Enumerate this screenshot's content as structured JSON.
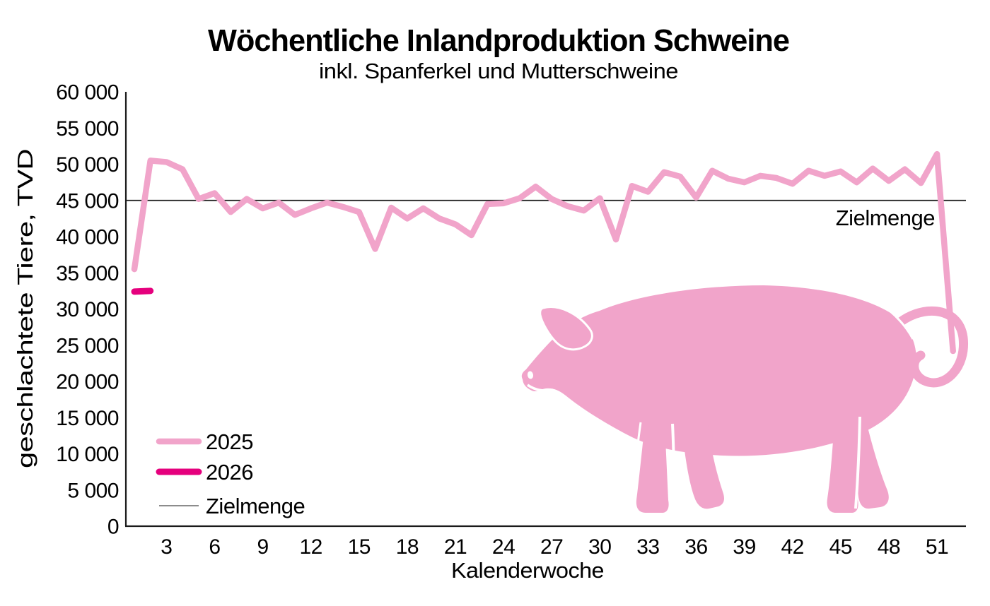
{
  "title": "Wöchentliche Inlandproduktion Schweine",
  "subtitle": "inkl. Spanferkel und Mutterschweine",
  "colors": {
    "series_2025": "#F1A4CA",
    "series_2026": "#E5007D",
    "pig": "#F1A4CA",
    "target_line": "#1a1a1a",
    "axis": "#1a1a1a",
    "legend_target_swatch": "#8c8c8c"
  },
  "chart_data": {
    "type": "line",
    "title": "Wöchentliche Inlandproduktion Schweine",
    "subtitle": "inkl. Spanferkel und Mutterschweine",
    "x_label": "Kalenderwoche",
    "y_label": "geschlachtete Tiere, TVD",
    "xlim_weeks": [
      1,
      52
    ],
    "ylim": [
      0,
      60000
    ],
    "grid": false,
    "legend_position": "bottom-left-inside",
    "x_tick_weeks": [
      3,
      6,
      9,
      12,
      15,
      18,
      21,
      24,
      27,
      30,
      33,
      36,
      39,
      42,
      45,
      48,
      51
    ],
    "y_ticks": [
      {
        "value": 0,
        "label": "0"
      },
      {
        "value": 5000,
        "label": "5 000"
      },
      {
        "value": 10000,
        "label": "10 000"
      },
      {
        "value": 15000,
        "label": "15 000"
      },
      {
        "value": 20000,
        "label": "20 000"
      },
      {
        "value": 25000,
        "label": "25 000"
      },
      {
        "value": 30000,
        "label": "30 000"
      },
      {
        "value": 35000,
        "label": "35 000"
      },
      {
        "value": 40000,
        "label": "40 000"
      },
      {
        "value": 45000,
        "label": "45 000"
      },
      {
        "value": 50000,
        "label": "50 000"
      },
      {
        "value": 55000,
        "label": "55 000"
      },
      {
        "value": 60000,
        "label": "60 000"
      }
    ],
    "target_line": {
      "label": "Zielmenge",
      "value": 45000,
      "color": "#1a1a1a"
    },
    "series": [
      {
        "name": "2025",
        "color": "#F1A4CA",
        "stroke_width": 8.5,
        "start_week": 1,
        "values": [
          35500,
          50500,
          50300,
          49300,
          45200,
          46000,
          43400,
          45200,
          43900,
          44700,
          43000,
          43900,
          44700,
          44100,
          43400,
          38300,
          44000,
          42500,
          43900,
          42500,
          41700,
          40200,
          44500,
          44600,
          45300,
          46900,
          45200,
          44200,
          43600,
          45300,
          39600,
          47000,
          46200,
          48900,
          48300,
          45400,
          49100,
          48000,
          47500,
          48400,
          48100,
          47300,
          49100,
          48400,
          49000,
          47500,
          49400,
          47700,
          49300,
          47400,
          51400,
          24200
        ]
      },
      {
        "name": "2026",
        "color": "#E5007D",
        "stroke_width": 9,
        "start_week": 1,
        "values": [
          32400,
          32500
        ]
      }
    ],
    "legend": {
      "items": [
        {
          "label": "2025",
          "color": "#F1A4CA",
          "width": 8.5
        },
        {
          "label": "2026",
          "color": "#E5007D",
          "width": 9
        },
        {
          "label": "Zielmenge",
          "color": "#8c8c8c",
          "width": 2
        }
      ]
    }
  }
}
